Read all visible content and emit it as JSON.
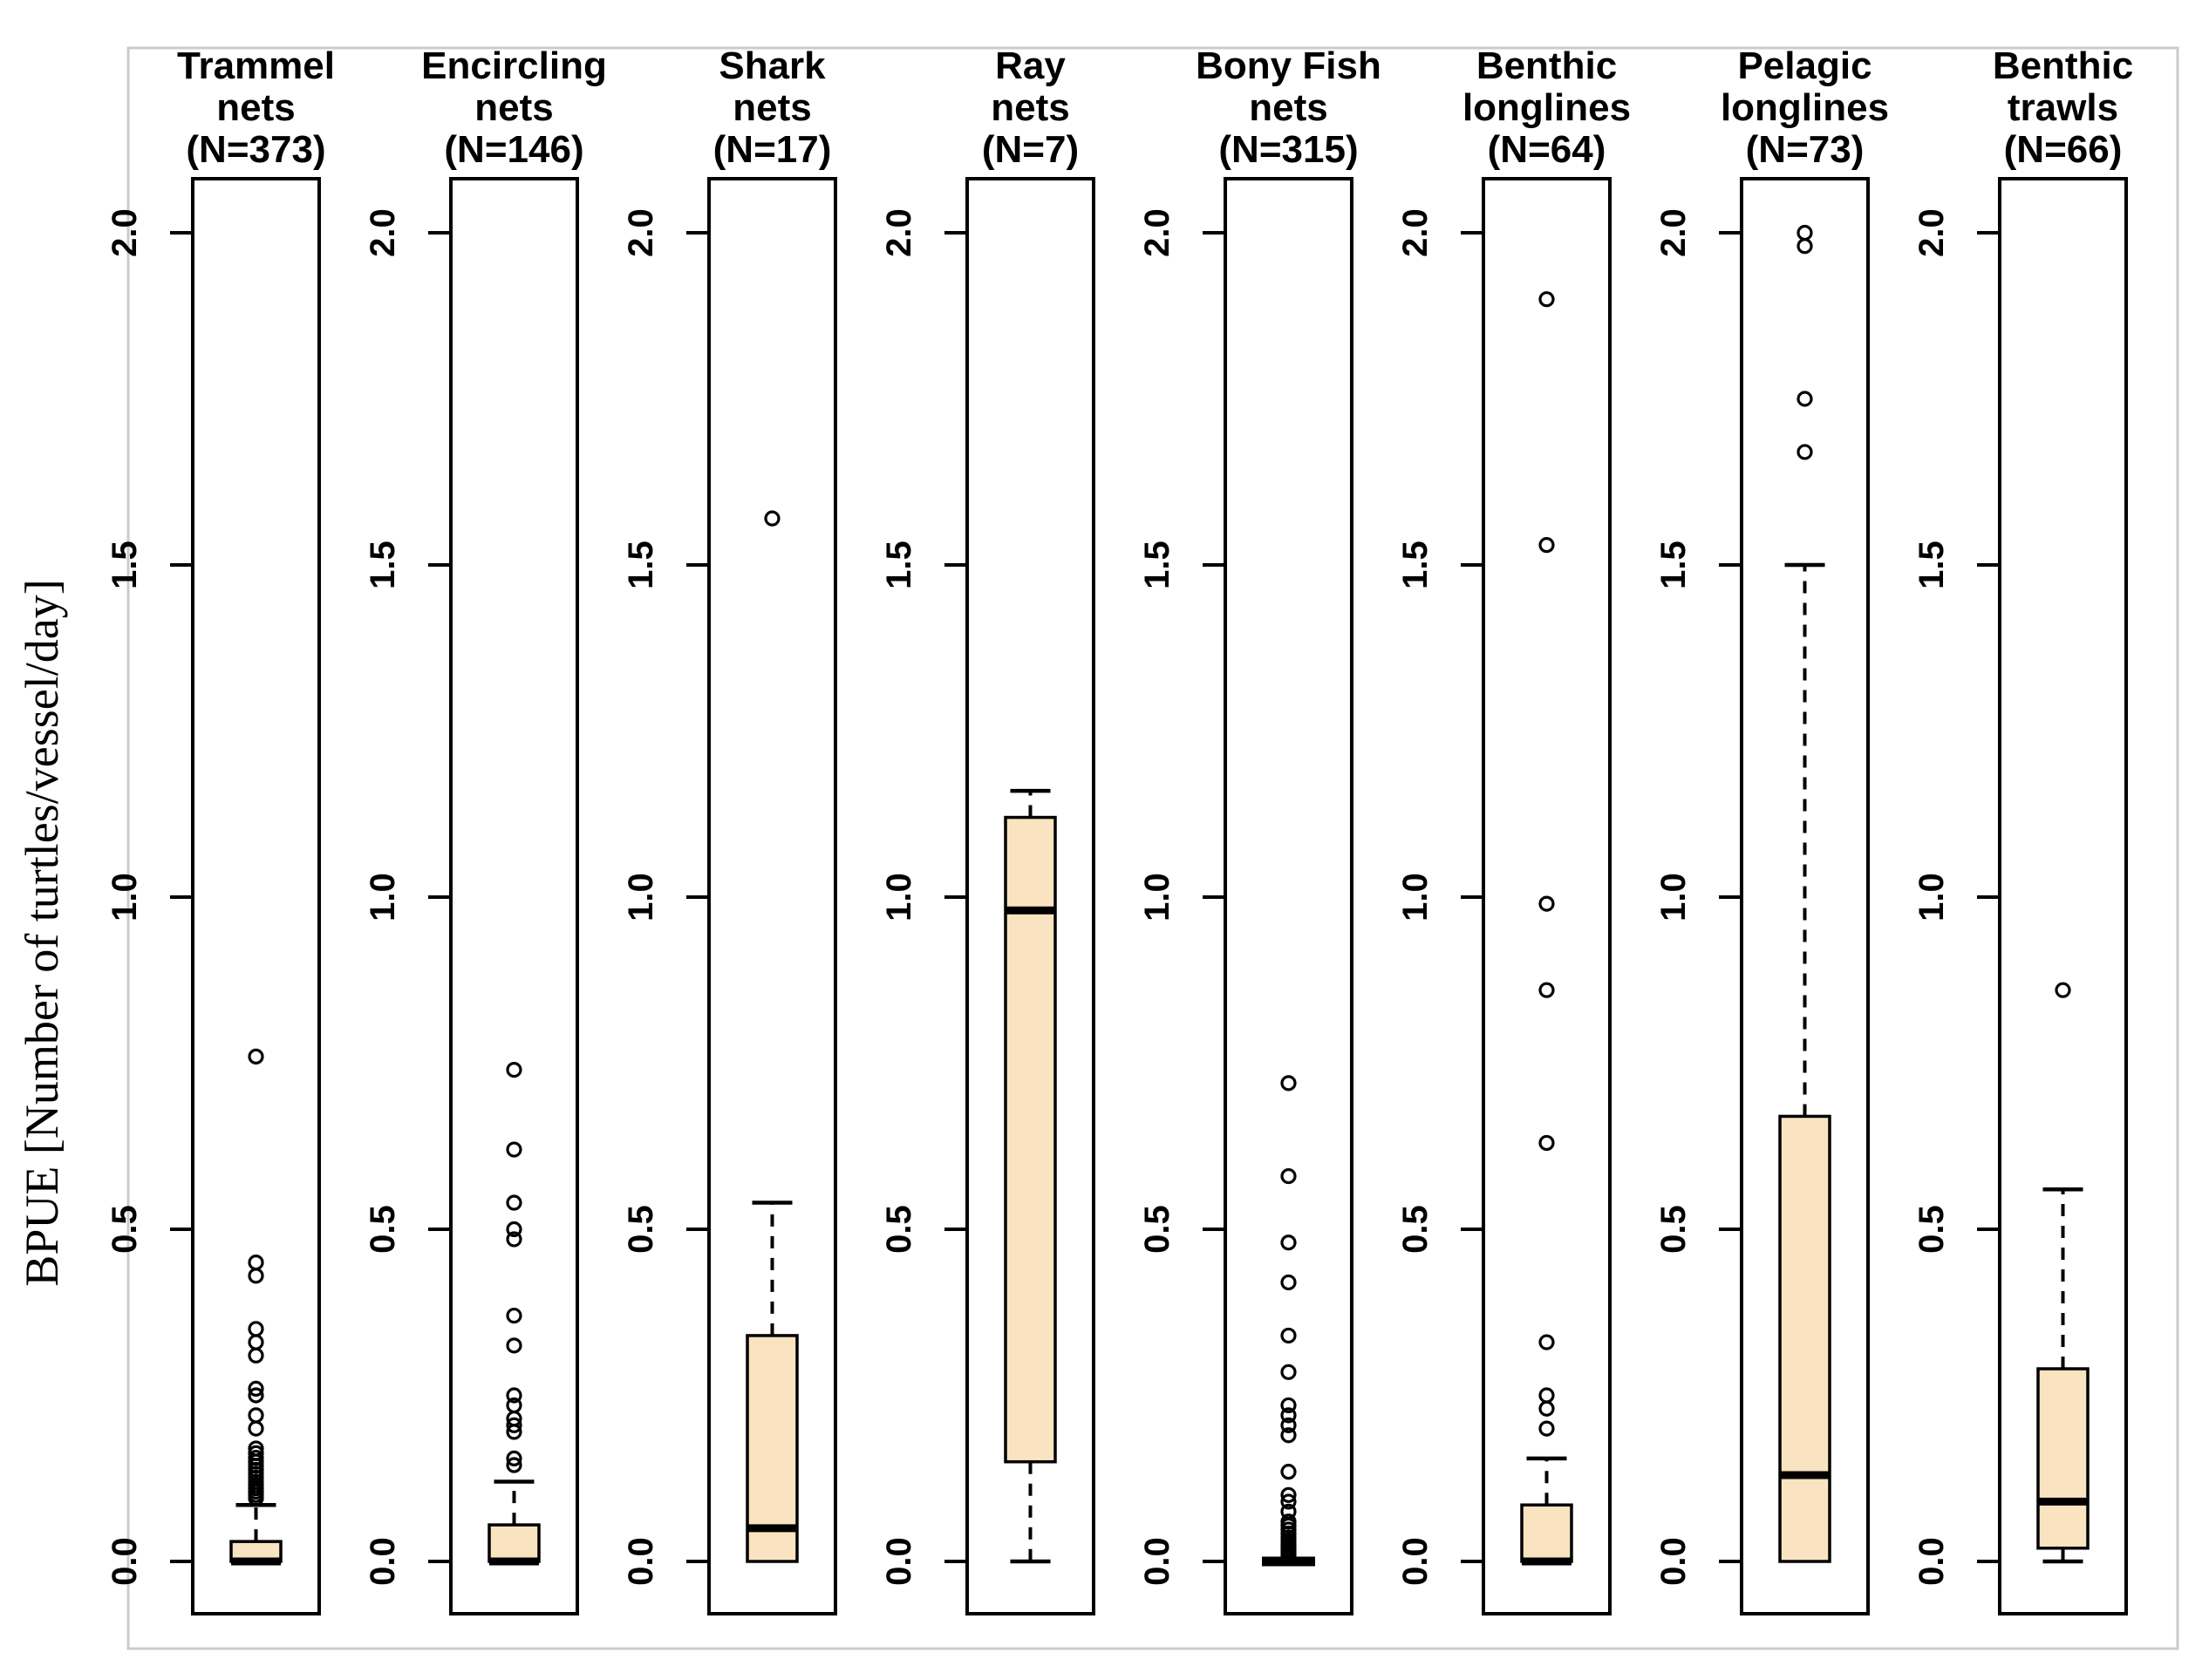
{
  "figure": {
    "ylabel": "BPUE [Number of turtles/vessel/day]",
    "frame_color": "#cbcbcb",
    "background": "#ffffff"
  },
  "chart_data": {
    "type": "boxplot",
    "title": "",
    "ylabel": "BPUE [Number of turtles/vessel/day]",
    "xlabel": "",
    "ylim": [
      -0.08,
      2.08
    ],
    "yticks": [
      0.0,
      0.5,
      1.0,
      1.5,
      2.0
    ],
    "ytick_labels": [
      "0.0",
      "0.5",
      "1.0",
      "1.5",
      "2.0"
    ],
    "grid": false,
    "legend": "none",
    "box_fill": "#fae3c1",
    "stroke_color": "#000000",
    "groups": [
      {
        "label_lines": [
          "Trammel",
          "nets",
          "(N=373)"
        ],
        "n": 373,
        "q1": 0,
        "median": 0,
        "q3": 0.03,
        "whisker_low": 0,
        "whisker_high": 0.085,
        "outliers": [
          0.76,
          0.45,
          0.43,
          0.35,
          0.33,
          0.31,
          0.26,
          0.25,
          0.22,
          0.2,
          0.17,
          0.163,
          0.156,
          0.15,
          0.144,
          0.138,
          0.132,
          0.126,
          0.12,
          0.115,
          0.11,
          0.105,
          0.1,
          0.095
        ]
      },
      {
        "label_lines": [
          "Encircling",
          "nets",
          "(N=146)"
        ],
        "n": 146,
        "q1": 0,
        "median": 0,
        "q3": 0.055,
        "whisker_low": 0,
        "whisker_high": 0.12,
        "outliers": [
          0.74,
          0.62,
          0.54,
          0.5,
          0.485,
          0.37,
          0.325,
          0.25,
          0.235,
          0.215,
          0.205,
          0.195,
          0.155,
          0.145
        ]
      },
      {
        "label_lines": [
          "Shark",
          "nets",
          "(N=17)"
        ],
        "n": 17,
        "q1": 0,
        "median": 0.05,
        "q3": 0.34,
        "whisker_low": 0,
        "whisker_high": 0.54,
        "outliers": [
          1.57
        ]
      },
      {
        "label_lines": [
          "Ray",
          "nets",
          "(N=7)"
        ],
        "n": 7,
        "q1": 0.15,
        "median": 0.98,
        "q3": 1.12,
        "whisker_low": 0,
        "whisker_high": 1.16,
        "outliers": []
      },
      {
        "label_lines": [
          "Bony Fish",
          "nets",
          "(N=315)"
        ],
        "n": 315,
        "q1": 0,
        "median": 0,
        "q3": 0,
        "whisker_low": 0,
        "whisker_high": 0,
        "outliers": [
          0.72,
          0.58,
          0.48,
          0.42,
          0.34,
          0.285,
          0.235,
          0.22,
          0.205,
          0.19,
          0.135,
          0.1,
          0.09,
          0.075,
          0.06,
          0.054,
          0.048,
          0.042,
          0.036,
          0.031,
          0.026,
          0.022,
          0.018,
          0.014,
          0.01,
          0.007
        ]
      },
      {
        "label_lines": [
          "Benthic",
          "longlines",
          "(N=64)"
        ],
        "n": 64,
        "q1": 0,
        "median": 0,
        "q3": 0.085,
        "whisker_low": 0,
        "whisker_high": 0.155,
        "outliers": [
          1.9,
          1.53,
          0.99,
          0.86,
          0.63,
          0.33,
          0.25,
          0.23,
          0.2
        ]
      },
      {
        "label_lines": [
          "Pelagic",
          "longlines",
          "(N=73)"
        ],
        "n": 73,
        "q1": 0,
        "median": 0.13,
        "q3": 0.67,
        "whisker_low": 0,
        "whisker_high": 1.5,
        "outliers": [
          2.0,
          1.98,
          1.75,
          1.67
        ]
      },
      {
        "label_lines": [
          "Benthic",
          "trawls",
          "(N=66)"
        ],
        "n": 66,
        "q1": 0.02,
        "median": 0.09,
        "q3": 0.29,
        "whisker_low": 0,
        "whisker_high": 0.56,
        "outliers": [
          0.86
        ]
      }
    ]
  }
}
